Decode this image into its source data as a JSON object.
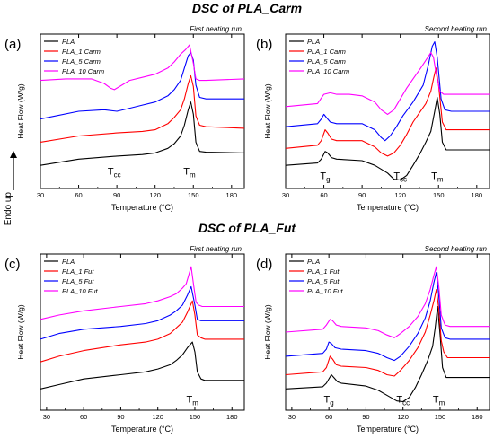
{
  "figure": {
    "section_titles": [
      "DSC of PLA_Carm",
      "DSC of PLA_Fut"
    ],
    "endo_label": "Endo up",
    "colors": {
      "PLA": "#000000",
      "PLA_1": "#ff0000",
      "PLA_5": "#0000ff",
      "PLA_10": "#ff00ff"
    }
  },
  "chart_data": [
    {
      "type": "line",
      "panel": "(a)",
      "run_label": "First heating run",
      "xlabel": "Temperature (°C)",
      "ylabel": "Heat Flow (W/g)",
      "xlim": [
        30,
        190
      ],
      "xticks": [
        30,
        60,
        90,
        120,
        150,
        180
      ],
      "legend_position": "top-left",
      "annotations": [
        {
          "main": "T",
          "sub": "cc",
          "x": 88,
          "y": 0.4
        },
        {
          "main": "T",
          "sub": "m",
          "x": 147,
          "y": 0.4
        }
      ],
      "series": [
        {
          "name": "PLA",
          "x": [
            30,
            60,
            90,
            110,
            120,
            130,
            135,
            140,
            143,
            146,
            148,
            150,
            152,
            155,
            160,
            190
          ],
          "y": [
            1.0,
            1.4,
            1.6,
            1.7,
            1.8,
            2.1,
            2.4,
            2.9,
            3.6,
            4.6,
            5.1,
            4.3,
            2.5,
            1.9,
            1.85,
            1.8
          ]
        },
        {
          "name": "PLA_1 Carm",
          "x": [
            30,
            60,
            90,
            110,
            120,
            130,
            135,
            140,
            143,
            146,
            148,
            150,
            152,
            155,
            160,
            190
          ],
          "y": [
            2.5,
            2.9,
            3.1,
            3.2,
            3.3,
            3.7,
            4.1,
            4.6,
            5.3,
            6.3,
            6.8,
            6.1,
            4.2,
            3.6,
            3.5,
            3.4
          ]
        },
        {
          "name": "PLA_5 Carm",
          "x": [
            30,
            60,
            80,
            90,
            100,
            110,
            120,
            130,
            135,
            140,
            143,
            146,
            148,
            150,
            152,
            155,
            160,
            190
          ],
          "y": [
            4.0,
            4.5,
            4.6,
            4.5,
            4.7,
            4.9,
            5.1,
            5.5,
            5.9,
            6.5,
            7.3,
            8.1,
            8.3,
            7.8,
            6.2,
            5.4,
            5.3,
            5.3
          ]
        },
        {
          "name": "PLA_10 Carm",
          "x": [
            30,
            50,
            70,
            80,
            85,
            88,
            92,
            100,
            110,
            120,
            130,
            135,
            140,
            144,
            147,
            150,
            152,
            155,
            160,
            190
          ],
          "y": [
            6.5,
            6.6,
            6.6,
            6.3,
            6.0,
            5.9,
            6.1,
            6.5,
            6.7,
            6.9,
            7.3,
            7.7,
            8.2,
            8.5,
            8.8,
            7.6,
            6.6,
            6.5,
            6.5,
            6.6
          ]
        }
      ]
    },
    {
      "type": "line",
      "panel": "(b)",
      "run_label": "Second heating run",
      "xlabel": "Temperature (°C)",
      "ylabel": "Heat Flow (W/g)",
      "xlim": [
        30,
        190
      ],
      "xticks": [
        30,
        60,
        90,
        120,
        150,
        180
      ],
      "legend_position": "top-left",
      "annotations": [
        {
          "main": "T",
          "sub": "g",
          "x": 61,
          "y": 0.1
        },
        {
          "main": "T",
          "sub": "cc",
          "x": 120,
          "y": 0.1
        },
        {
          "main": "T",
          "sub": "m",
          "x": 149,
          "y": 0.1
        }
      ],
      "series": [
        {
          "name": "PLA",
          "x": [
            30,
            55,
            58,
            61,
            63,
            66,
            70,
            90,
            100,
            110,
            115,
            120,
            125,
            130,
            135,
            140,
            144,
            147,
            149,
            151,
            153,
            156,
            160,
            190
          ],
          "y": [
            1.0,
            1.15,
            1.4,
            1.9,
            1.8,
            1.5,
            1.4,
            1.3,
            1.0,
            0.5,
            0.1,
            0.05,
            0.35,
            1.0,
            1.7,
            2.5,
            3.2,
            4.5,
            5.4,
            4.3,
            2.5,
            2.0,
            2.0,
            2.0
          ]
        },
        {
          "name": "PLA_1 Carm",
          "x": [
            30,
            55,
            58,
            61,
            63,
            66,
            70,
            90,
            100,
            105,
            110,
            115,
            120,
            125,
            130,
            135,
            140,
            144,
            146,
            148,
            150,
            153,
            156,
            160,
            190
          ],
          "y": [
            2.1,
            2.3,
            2.6,
            3.3,
            3.1,
            2.7,
            2.6,
            2.6,
            2.2,
            1.8,
            1.6,
            1.8,
            2.3,
            3.0,
            3.8,
            4.4,
            5.0,
            5.8,
            6.6,
            7.3,
            6.2,
            3.8,
            3.3,
            3.3,
            3.3
          ]
        },
        {
          "name": "PLA_5 Carm",
          "x": [
            30,
            55,
            58,
            60,
            62,
            65,
            70,
            90,
            100,
            105,
            108,
            112,
            117,
            122,
            130,
            138,
            142,
            145,
            147,
            149,
            152,
            155,
            160,
            190
          ],
          "y": [
            3.5,
            3.7,
            4.0,
            4.3,
            4.1,
            3.8,
            3.7,
            3.7,
            3.3,
            2.8,
            2.6,
            2.9,
            3.5,
            4.2,
            5.1,
            6.2,
            7.5,
            8.7,
            9.0,
            8.0,
            5.3,
            4.6,
            4.5,
            4.5
          ]
        },
        {
          "name": "PLA_10 Carm",
          "x": [
            30,
            55,
            60,
            65,
            70,
            80,
            90,
            100,
            105,
            110,
            115,
            120,
            125,
            130,
            136,
            140,
            144,
            146,
            148,
            151,
            154,
            160,
            190
          ],
          "y": [
            4.8,
            5.0,
            5.6,
            5.7,
            5.6,
            5.6,
            5.5,
            5.1,
            4.6,
            4.3,
            4.6,
            5.3,
            6.0,
            6.6,
            7.3,
            7.8,
            8.3,
            8.0,
            7.0,
            5.8,
            5.6,
            5.6,
            5.6
          ]
        }
      ]
    },
    {
      "type": "line",
      "panel": "(c)",
      "run_label": "First heating run",
      "xlabel": "Temperature (°C)",
      "ylabel": "Heat Flow (W/g)",
      "xlim": [
        25,
        190
      ],
      "xticks": [
        30,
        60,
        90,
        120,
        150,
        180
      ],
      "legend_position": "top-left",
      "annotations": [
        {
          "main": "T",
          "sub": "m",
          "x": 148,
          "y": 0.05
        }
      ],
      "series": [
        {
          "name": "PLA",
          "x": [
            25,
            40,
            60,
            90,
            110,
            120,
            130,
            135,
            140,
            144,
            148,
            150,
            152,
            155,
            158,
            162,
            190
          ],
          "y": [
            1.0,
            1.3,
            1.7,
            2.0,
            2.2,
            2.4,
            2.7,
            3.0,
            3.4,
            3.9,
            4.3,
            3.6,
            2.2,
            1.7,
            1.6,
            1.6,
            1.6
          ]
        },
        {
          "name": "PLA_1 Fut",
          "x": [
            25,
            40,
            60,
            90,
            110,
            120,
            130,
            135,
            140,
            144,
            148,
            150,
            152,
            155,
            158,
            162,
            190
          ],
          "y": [
            2.9,
            3.3,
            3.7,
            4.1,
            4.3,
            4.5,
            4.9,
            5.3,
            5.7,
            6.4,
            7.2,
            6.2,
            4.8,
            4.6,
            4.5,
            4.5,
            4.5
          ]
        },
        {
          "name": "PLA_5 Fut",
          "x": [
            25,
            40,
            60,
            90,
            110,
            120,
            130,
            135,
            140,
            144,
            147,
            150,
            152,
            155,
            158,
            162,
            190
          ],
          "y": [
            4.5,
            4.9,
            5.2,
            5.4,
            5.6,
            5.8,
            6.2,
            6.5,
            6.9,
            7.6,
            8.2,
            6.9,
            5.9,
            5.8,
            5.8,
            5.8,
            5.8
          ]
        },
        {
          "name": "PLA_10 Fut",
          "x": [
            25,
            40,
            60,
            90,
            110,
            120,
            130,
            135,
            140,
            143,
            145,
            147,
            149,
            151,
            153,
            156,
            160,
            190
          ],
          "y": [
            5.9,
            6.2,
            6.5,
            6.8,
            7.0,
            7.2,
            7.5,
            7.7,
            8.1,
            8.4,
            9.0,
            9.6,
            8.3,
            7.1,
            6.9,
            6.8,
            6.8,
            6.8
          ]
        }
      ]
    },
    {
      "type": "line",
      "panel": "(d)",
      "run_label": "Second heating run",
      "xlabel": "Temperature (°C)",
      "ylabel": "Heat Flow (W/g)",
      "xlim": [
        25,
        190
      ],
      "xticks": [
        30,
        60,
        90,
        120,
        150,
        180
      ],
      "legend_position": "top-left",
      "annotations": [
        {
          "main": "T",
          "sub": "g",
          "x": 60,
          "y": 0.05
        },
        {
          "main": "T",
          "sub": "cc",
          "x": 120,
          "y": 0.05
        },
        {
          "main": "T",
          "sub": "m",
          "x": 149,
          "y": 0.05
        }
      ],
      "series": [
        {
          "name": "PLA",
          "x": [
            25,
            55,
            58,
            62,
            64,
            67,
            70,
            90,
            100,
            108,
            115,
            120,
            125,
            130,
            135,
            140,
            144,
            146,
            148,
            150,
            152,
            155,
            160,
            190
          ],
          "y": [
            1.0,
            1.15,
            1.4,
            2.0,
            1.8,
            1.5,
            1.4,
            1.2,
            0.9,
            0.5,
            0.15,
            0.1,
            0.4,
            1.1,
            2.0,
            3.0,
            4.0,
            5.3,
            6.8,
            4.8,
            2.5,
            1.8,
            1.8,
            1.8
          ]
        },
        {
          "name": "PLA_1 Fut",
          "x": [
            25,
            55,
            58,
            61,
            63,
            66,
            70,
            90,
            100,
            107,
            113,
            118,
            125,
            132,
            138,
            142,
            145,
            147,
            149,
            151,
            153,
            156,
            160,
            190
          ],
          "y": [
            2.0,
            2.2,
            2.5,
            3.3,
            3.1,
            2.7,
            2.6,
            2.5,
            2.3,
            2.0,
            1.9,
            2.3,
            3.0,
            3.9,
            5.0,
            6.2,
            7.2,
            8.0,
            6.6,
            4.4,
            3.6,
            3.2,
            3.2,
            3.2
          ]
        },
        {
          "name": "PLA_5 Fut",
          "x": [
            25,
            55,
            58,
            60,
            62,
            65,
            70,
            90,
            100,
            107,
            113,
            118,
            125,
            132,
            138,
            142,
            145,
            147,
            149,
            151,
            154,
            158,
            190
          ],
          "y": [
            3.3,
            3.5,
            3.8,
            4.3,
            4.2,
            3.9,
            3.8,
            3.7,
            3.5,
            3.2,
            3.0,
            3.3,
            4.0,
            4.9,
            6.0,
            7.2,
            8.5,
            9.2,
            7.5,
            5.3,
            4.6,
            4.5,
            4.5
          ]
        },
        {
          "name": "PLA_10 Fut",
          "x": [
            25,
            55,
            58,
            61,
            63,
            66,
            70,
            90,
            100,
            107,
            113,
            118,
            125,
            132,
            138,
            142,
            145,
            147,
            149,
            151,
            154,
            158,
            190
          ],
          "y": [
            5.0,
            5.2,
            5.5,
            5.9,
            5.8,
            5.5,
            5.4,
            5.3,
            5.1,
            4.8,
            4.6,
            4.9,
            5.4,
            6.1,
            7.0,
            8.0,
            9.0,
            9.6,
            8.2,
            6.2,
            5.5,
            5.4,
            5.4
          ]
        }
      ]
    }
  ]
}
